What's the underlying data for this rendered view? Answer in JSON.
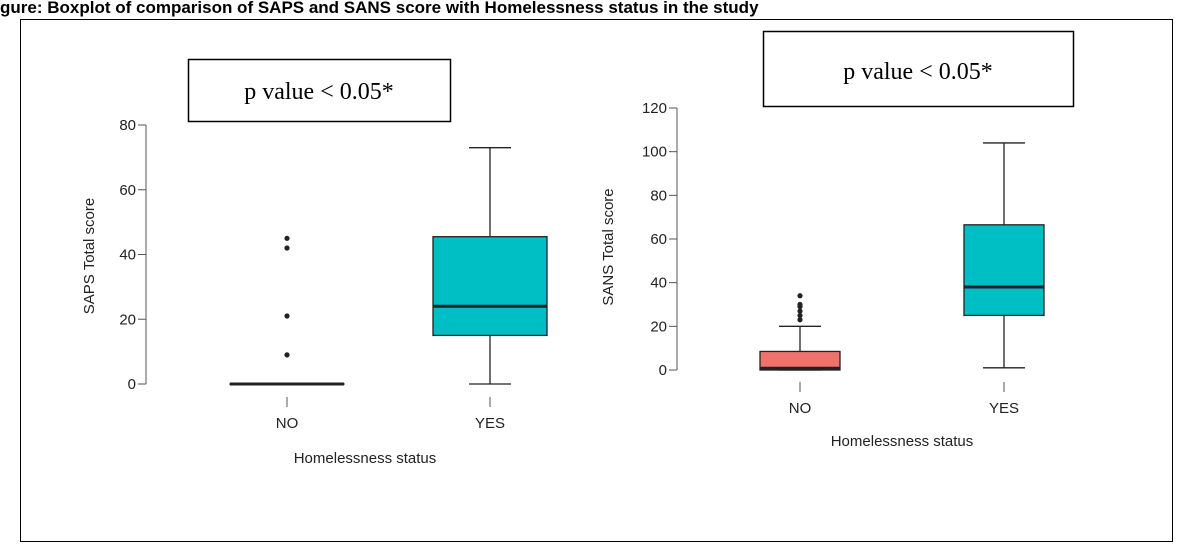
{
  "caption": "gure: Boxplot of comparison of SAPS and SANS score with Homelessness status in the study",
  "colors": {
    "no_box": "#f0736b",
    "yes_box": "#00bfc4",
    "axis": "#555555",
    "text": "#222222",
    "frame": "#000000"
  },
  "chart_data": [
    {
      "type": "box",
      "pvalue_label": "p value < 0.05*",
      "xlabel": "Homelessness status",
      "ylabel": "SAPS Total score",
      "ylim": [
        0,
        80
      ],
      "yticks": [
        0,
        20,
        40,
        60,
        80
      ],
      "categories": [
        "NO",
        "YES"
      ],
      "boxes": [
        {
          "category": "NO",
          "min": 0,
          "q1": 0,
          "median": 0,
          "q3": 0,
          "max": 0,
          "outliers": [
            9,
            21,
            42,
            45
          ]
        },
        {
          "category": "YES",
          "min": 0,
          "q1": 15,
          "median": 24,
          "q3": 45.5,
          "max": 73,
          "outliers": []
        }
      ]
    },
    {
      "type": "box",
      "pvalue_label": "p value < 0.05*",
      "xlabel": "Homelessness status",
      "ylabel": "SANS Total score",
      "ylim": [
        0,
        120
      ],
      "yticks": [
        0,
        20,
        40,
        60,
        80,
        100,
        120
      ],
      "categories": [
        "NO",
        "YES"
      ],
      "boxes": [
        {
          "category": "NO",
          "min": 0,
          "q1": 0,
          "median": 0.8,
          "q3": 8.5,
          "max": 20,
          "outliers": [
            23,
            25,
            27,
            29,
            30,
            34
          ]
        },
        {
          "category": "YES",
          "min": 1,
          "q1": 25,
          "median": 38,
          "q3": 66.5,
          "max": 104,
          "outliers": []
        }
      ]
    }
  ]
}
